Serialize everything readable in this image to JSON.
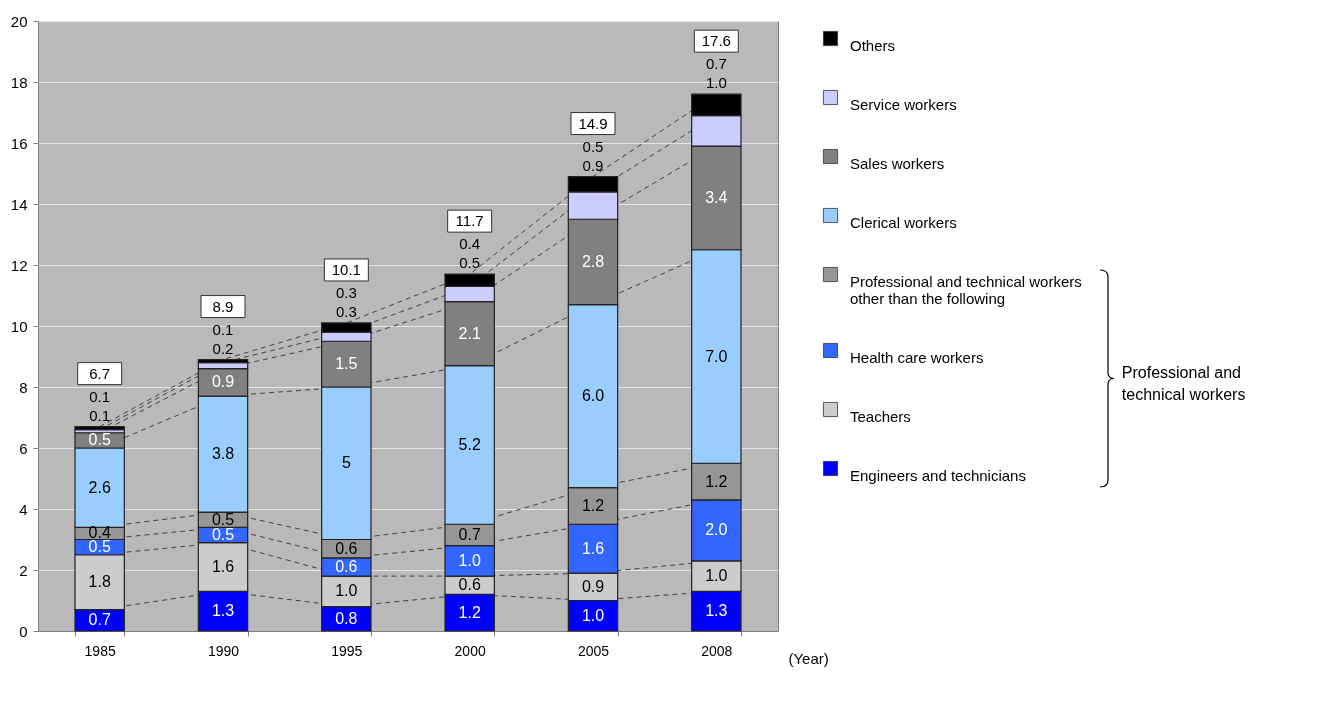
{
  "chart_data": {
    "type": "bar",
    "stacked": true,
    "categories": [
      "1985",
      "1990",
      "1995",
      "2000",
      "2005",
      "2008"
    ],
    "xlabel": "(Year)",
    "ylim": [
      0,
      20
    ],
    "yticks": [
      0,
      2,
      4,
      6,
      8,
      10,
      12,
      14,
      16,
      18,
      20
    ],
    "grid": "y",
    "legend": "right",
    "annotations": [
      "Professional and technical workers"
    ],
    "totals": [
      "6.7",
      "8.9",
      "10.1",
      "11.7",
      "14.9",
      "17.6"
    ],
    "series": [
      {
        "name": "Engineers and technicians",
        "color": "#0000ff",
        "values": [
          0.7,
          1.3,
          0.8,
          1.2,
          1.0,
          1.3
        ],
        "value_labels": [
          "0.7",
          "1.3",
          "0.8",
          "1.2",
          "1.0",
          "1.3"
        ]
      },
      {
        "name": "Teachers",
        "color": "#cccccc",
        "values": [
          1.8,
          1.6,
          1.0,
          0.6,
          0.9,
          1.0
        ],
        "value_labels": [
          "1.8",
          "1.6",
          "1.0",
          "0.6",
          "0.9",
          "1.0"
        ]
      },
      {
        "name": "Health care workers",
        "color": "#3366ff",
        "values": [
          0.5,
          0.5,
          0.6,
          1.0,
          1.6,
          2.0
        ],
        "value_labels": [
          "0.5",
          "0.5",
          "0.6",
          "1.0",
          "1.6",
          "2.0"
        ]
      },
      {
        "name": "Professional and technical workers other than the following",
        "color": "#969696",
        "values": [
          0.4,
          0.5,
          0.6,
          0.7,
          1.2,
          1.2
        ],
        "value_labels": [
          "0.4",
          "0.5",
          "0.6",
          "0.7",
          "1.2",
          "1.2"
        ]
      },
      {
        "name": "Clerical workers",
        "color": "#99ccff",
        "values": [
          2.6,
          3.8,
          5,
          5.2,
          6.0,
          7.0
        ],
        "value_labels": [
          "2.6",
          "3.8",
          "5",
          "5.2",
          "6.0",
          "7.0"
        ]
      },
      {
        "name": "Sales workers",
        "color": "#808080",
        "values": [
          0.5,
          0.9,
          1.5,
          2.1,
          2.8,
          3.4
        ],
        "value_labels": [
          "0.5",
          "0.9",
          "1.5",
          "2.1",
          "2.8",
          "3.4"
        ]
      },
      {
        "name": "Service workers",
        "color": "#ccccff",
        "values": [
          0.1,
          0.2,
          0.3,
          0.5,
          0.9,
          1.0
        ],
        "value_labels": [
          "0.1",
          "0.2",
          "0.3",
          "0.5",
          "0.9",
          "1.0"
        ]
      },
      {
        "name": "Others",
        "color": "#000000",
        "values": [
          0.1,
          0.1,
          0.3,
          0.4,
          0.5,
          0.7
        ],
        "value_labels": [
          "0.1",
          "0.1",
          "0.3",
          "0.4",
          "0.5",
          "0.7"
        ]
      }
    ]
  }
}
